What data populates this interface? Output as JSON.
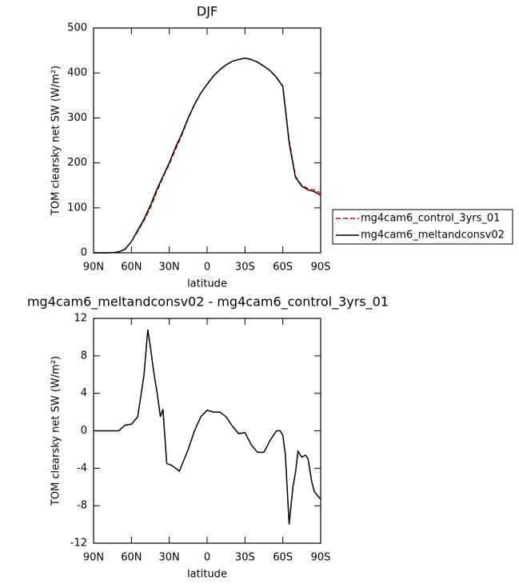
{
  "chart_data": [
    {
      "type": "line",
      "title": "DJF",
      "xlabel": "latitude",
      "ylabel": "TOM clearsky net SW (W/m²)",
      "x": [
        90,
        85,
        80,
        75,
        70,
        65,
        60,
        55,
        50,
        45,
        40,
        35,
        30,
        25,
        20,
        15,
        10,
        5,
        0,
        -5,
        -10,
        -15,
        -20,
        -25,
        -30,
        -35,
        -40,
        -45,
        -50,
        -55,
        -60,
        -65,
        -70,
        -75,
        -80,
        -85,
        -90
      ],
      "series": [
        {
          "name": "mg4cam6_control_3yrs_01",
          "color": "#e00000",
          "linestyle": "dashed",
          "values": [
            0,
            0,
            0,
            0.5,
            2,
            8,
            25,
            48,
            72,
            100,
            135,
            168,
            197,
            230,
            262,
            298,
            330,
            355,
            375,
            393,
            407,
            418,
            426,
            430,
            433,
            430,
            424,
            415,
            405,
            390,
            370,
            250,
            170,
            150,
            143,
            140,
            133
          ]
        },
        {
          "name": "mg4cam6_meltandconsv02",
          "color": "#000000",
          "linestyle": "solid",
          "values": [
            0,
            0,
            0,
            0.5,
            2,
            8,
            25,
            50,
            75,
            105,
            140,
            170,
            200,
            235,
            265,
            300,
            330,
            355,
            375,
            393,
            407,
            418,
            426,
            430,
            433,
            430,
            424,
            415,
            405,
            390,
            370,
            245,
            168,
            148,
            140,
            136,
            128
          ]
        }
      ],
      "xlim": [
        90,
        -90
      ],
      "xticks": [
        {
          "value": 90,
          "label": "90N"
        },
        {
          "value": 60,
          "label": "60N"
        },
        {
          "value": 30,
          "label": "30N"
        },
        0,
        {
          "value": -30,
          "label": "30S"
        },
        {
          "value": -60,
          "label": "60S"
        },
        {
          "value": -90,
          "label": "90S"
        }
      ],
      "ylim": [
        0,
        500
      ],
      "yticks": [
        0,
        100,
        200,
        300,
        400,
        500
      ],
      "legend": "right"
    },
    {
      "type": "line",
      "title": "mg4cam6_meltandconsv02 - mg4cam6_control_3yrs_01",
      "xlabel": "latitude",
      "ylabel": "TOM clearsky net SW (W/m²)",
      "x": [
        90,
        80,
        70,
        65,
        60,
        55,
        50,
        47,
        45,
        42,
        40,
        37,
        35,
        32,
        28,
        22,
        15,
        10,
        5,
        0,
        -5,
        -10,
        -15,
        -20,
        -25,
        -30,
        -35,
        -40,
        -45,
        -50,
        -55,
        -58,
        -60,
        -62,
        -65,
        -68,
        -70,
        -72,
        -75,
        -78,
        -80,
        -83,
        -85,
        -88,
        -90
      ],
      "series": [
        {
          "color": "#000000",
          "linestyle": "solid",
          "values": [
            0,
            0,
            0,
            0.6,
            0.7,
            1.5,
            6,
            10.8,
            9,
            6,
            4.4,
            1.5,
            2.3,
            -3.5,
            -3.7,
            -4.3,
            -2,
            0,
            1.5,
            2.2,
            2,
            2,
            1.5,
            0.5,
            -0.3,
            -0.2,
            -1.5,
            -2.3,
            -2.3,
            -1,
            0,
            0,
            -0.5,
            -2.5,
            -10,
            -6,
            -4.5,
            -2.2,
            -2.8,
            -2.6,
            -3,
            -5.5,
            -6.5,
            -7,
            -7.3
          ]
        }
      ],
      "xlim": [
        90,
        -90
      ],
      "xticks": [
        {
          "value": 90,
          "label": "90N"
        },
        {
          "value": 60,
          "label": "60N"
        },
        {
          "value": 30,
          "label": "30N"
        },
        0,
        {
          "value": -30,
          "label": "30S"
        },
        {
          "value": -60,
          "label": "60S"
        },
        {
          "value": -90,
          "label": "90S"
        }
      ],
      "ylim": [
        -12,
        12
      ],
      "yticks": [
        -12,
        -8,
        -4,
        0,
        4,
        8,
        12
      ]
    }
  ]
}
